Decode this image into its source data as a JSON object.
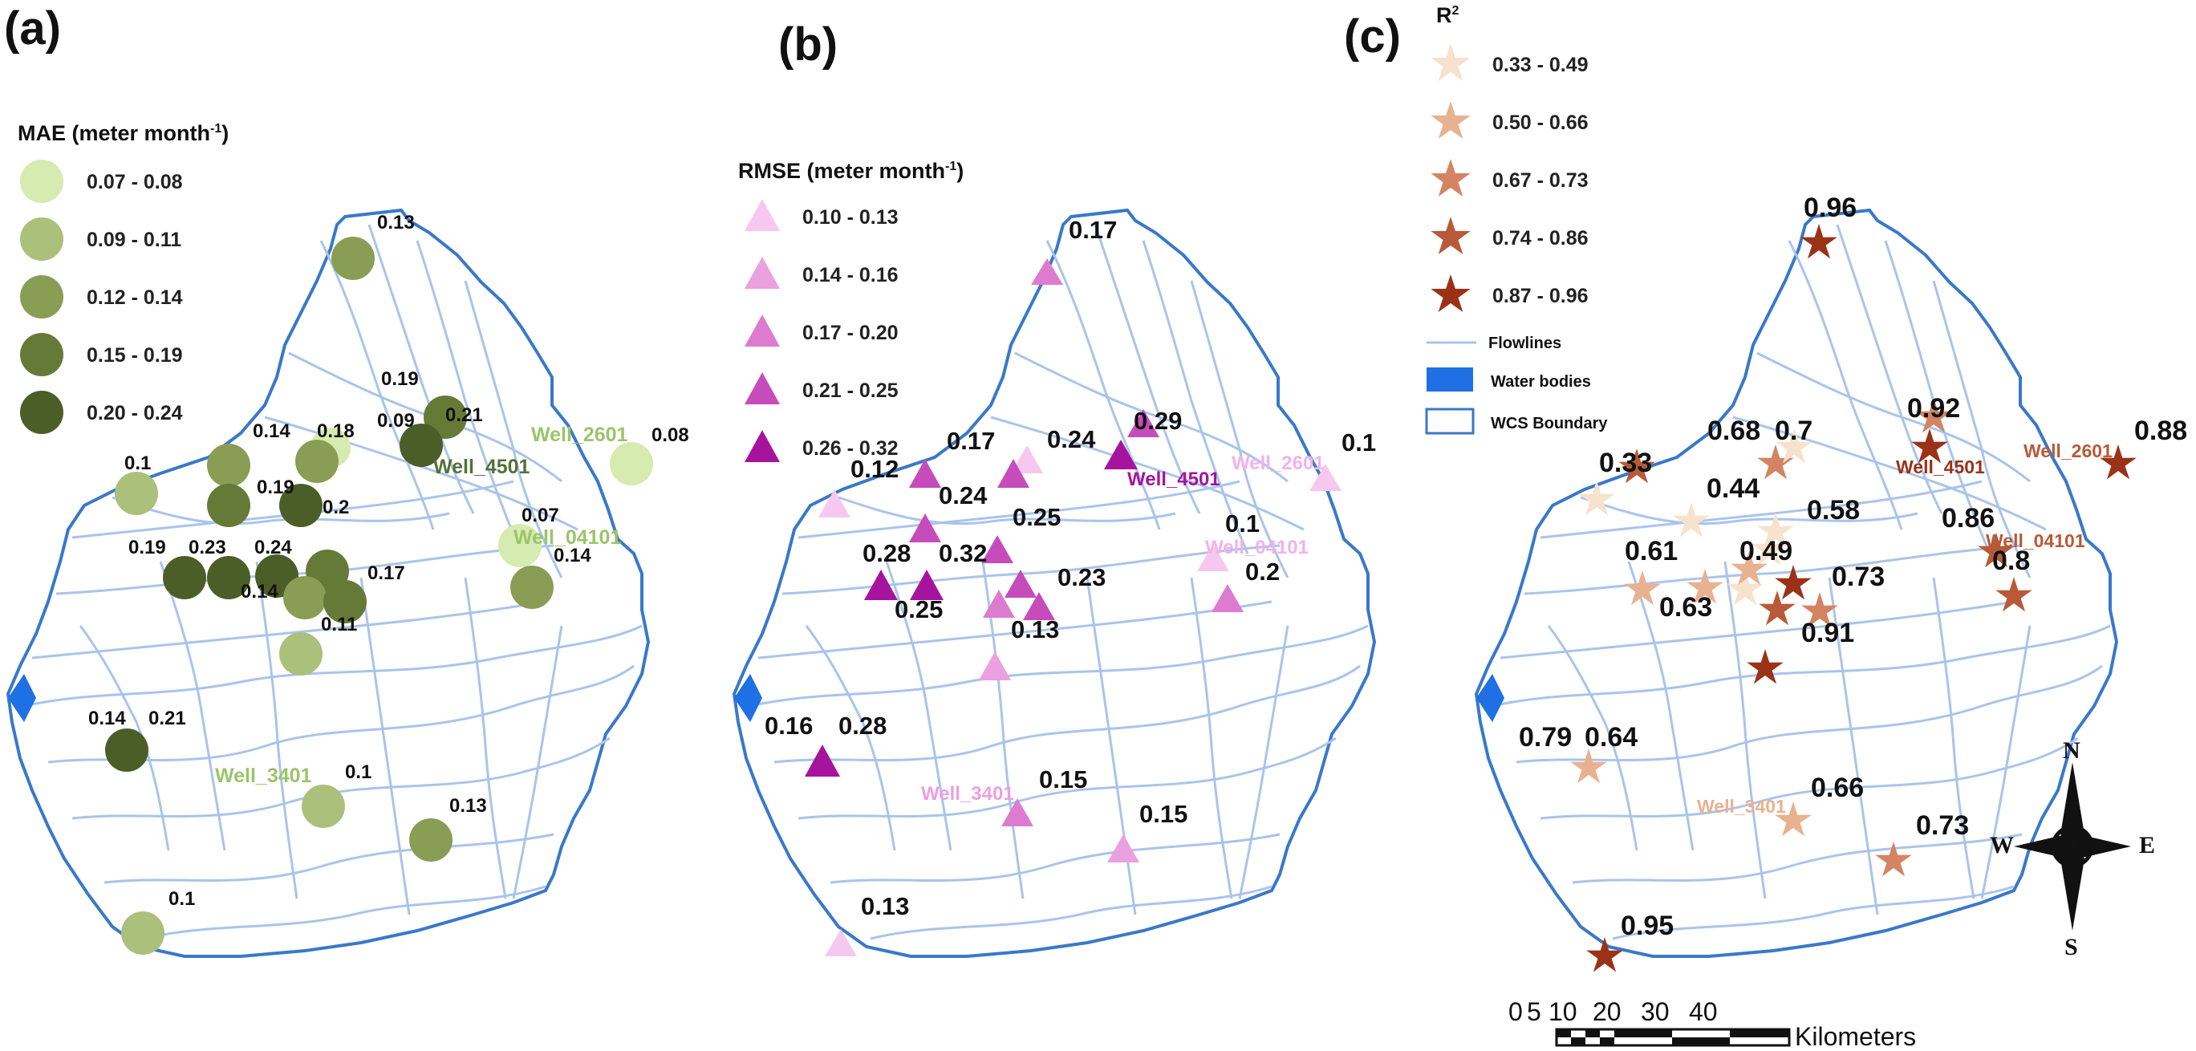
{
  "panels": {
    "a": {
      "label": "(a)",
      "legend_title": "MAE (meter month",
      "legend_sup": "-1",
      "legend_close": ")",
      "classes": [
        {
          "label": "0.07 - 0.08",
          "color": "#d6ebb0"
        },
        {
          "label": "0.09 - 0.11",
          "color": "#abc07a"
        },
        {
          "label": "0.12 - 0.14",
          "color": "#8a9d55"
        },
        {
          "label": "0.15 - 0.19",
          "color": "#667a38"
        },
        {
          "label": "0.20 - 0.24",
          "color": "#4c5e28"
        }
      ],
      "values": [
        "0.13",
        "0.19",
        "0.21",
        "0.09",
        "0.14",
        "0.18",
        "0.1",
        "0.19",
        "0.2",
        "0.19",
        "0.23",
        "0.24",
        "0.14",
        "0.17",
        "0.11",
        "0.14",
        "0.21",
        "0.1",
        "0.13",
        "0.1",
        "0.07",
        "0.14",
        "0.08"
      ],
      "wells": [
        "Well_2601",
        "Well_4501",
        "Well_04101",
        "Well_3401"
      ]
    },
    "b": {
      "label": "(b)",
      "legend_title": "RMSE (meter  month",
      "legend_sup": "-1",
      "legend_close": ")",
      "classes": [
        {
          "label": "0.10 - 0.13",
          "color": "#f6c8ef"
        },
        {
          "label": "0.14 - 0.16",
          "color": "#eba0e0"
        },
        {
          "label": "0.17 - 0.20",
          "color": "#dc7bd0"
        },
        {
          "label": "0.21 - 0.25",
          "color": "#c64cbc"
        },
        {
          "label": "0.26 - 0.32",
          "color": "#a6149e"
        }
      ],
      "values": [
        "0.17",
        "0.29",
        "0.17",
        "0.24",
        "0.12",
        "0.24",
        "0.25",
        "0.28",
        "0.32",
        "0.23",
        "0.25",
        "0.13",
        "0.16",
        "0.28",
        "0.15",
        "0.15",
        "0.13",
        "0.1",
        "0.1",
        "0.2"
      ],
      "wells": [
        "Well_4501",
        "Well_2601",
        "Well_04101",
        "Well_3401"
      ]
    },
    "c": {
      "label": "(c)",
      "legend_title": "R",
      "legend_sup": "2",
      "classes": [
        {
          "label": "0.33 - 0.49",
          "color": "#f7e2cd"
        },
        {
          "label": "0.50 - 0.66",
          "color": "#e8b291"
        },
        {
          "label": "0.67 - 0.73",
          "color": "#d48462"
        },
        {
          "label": "0.74 - 0.86",
          "color": "#b85a38"
        },
        {
          "label": "0.87 - 0.96",
          "color": "#9a3218"
        }
      ],
      "extra_legend": {
        "flowlines": "Flowlines",
        "water": "Water bodies",
        "boundary": "WCS Boundary"
      },
      "values": [
        "0.96",
        "0.68",
        "0.7",
        "0.92",
        "0.88",
        "0.33",
        "0.44",
        "0.58",
        "0.86",
        "0.61",
        "0.49",
        "0.73",
        "0.8",
        "0.63",
        "0.91",
        "0.79",
        "0.64",
        "0.66",
        "0.73",
        "0.95"
      ],
      "wells": [
        "Well_4501",
        "Well_2601",
        "Well_04101",
        "Well_3401"
      ],
      "scale_ticks": [
        "0",
        "5",
        "10",
        "20",
        "30",
        "40"
      ],
      "scale_unit": "Kilometers",
      "compass": {
        "n": "N",
        "s": "S",
        "e": "E",
        "w": "W"
      }
    }
  },
  "colors": {
    "boundary": "#3a78c9",
    "flowline": "#a9c4ec",
    "water": "#1f6fe5"
  }
}
